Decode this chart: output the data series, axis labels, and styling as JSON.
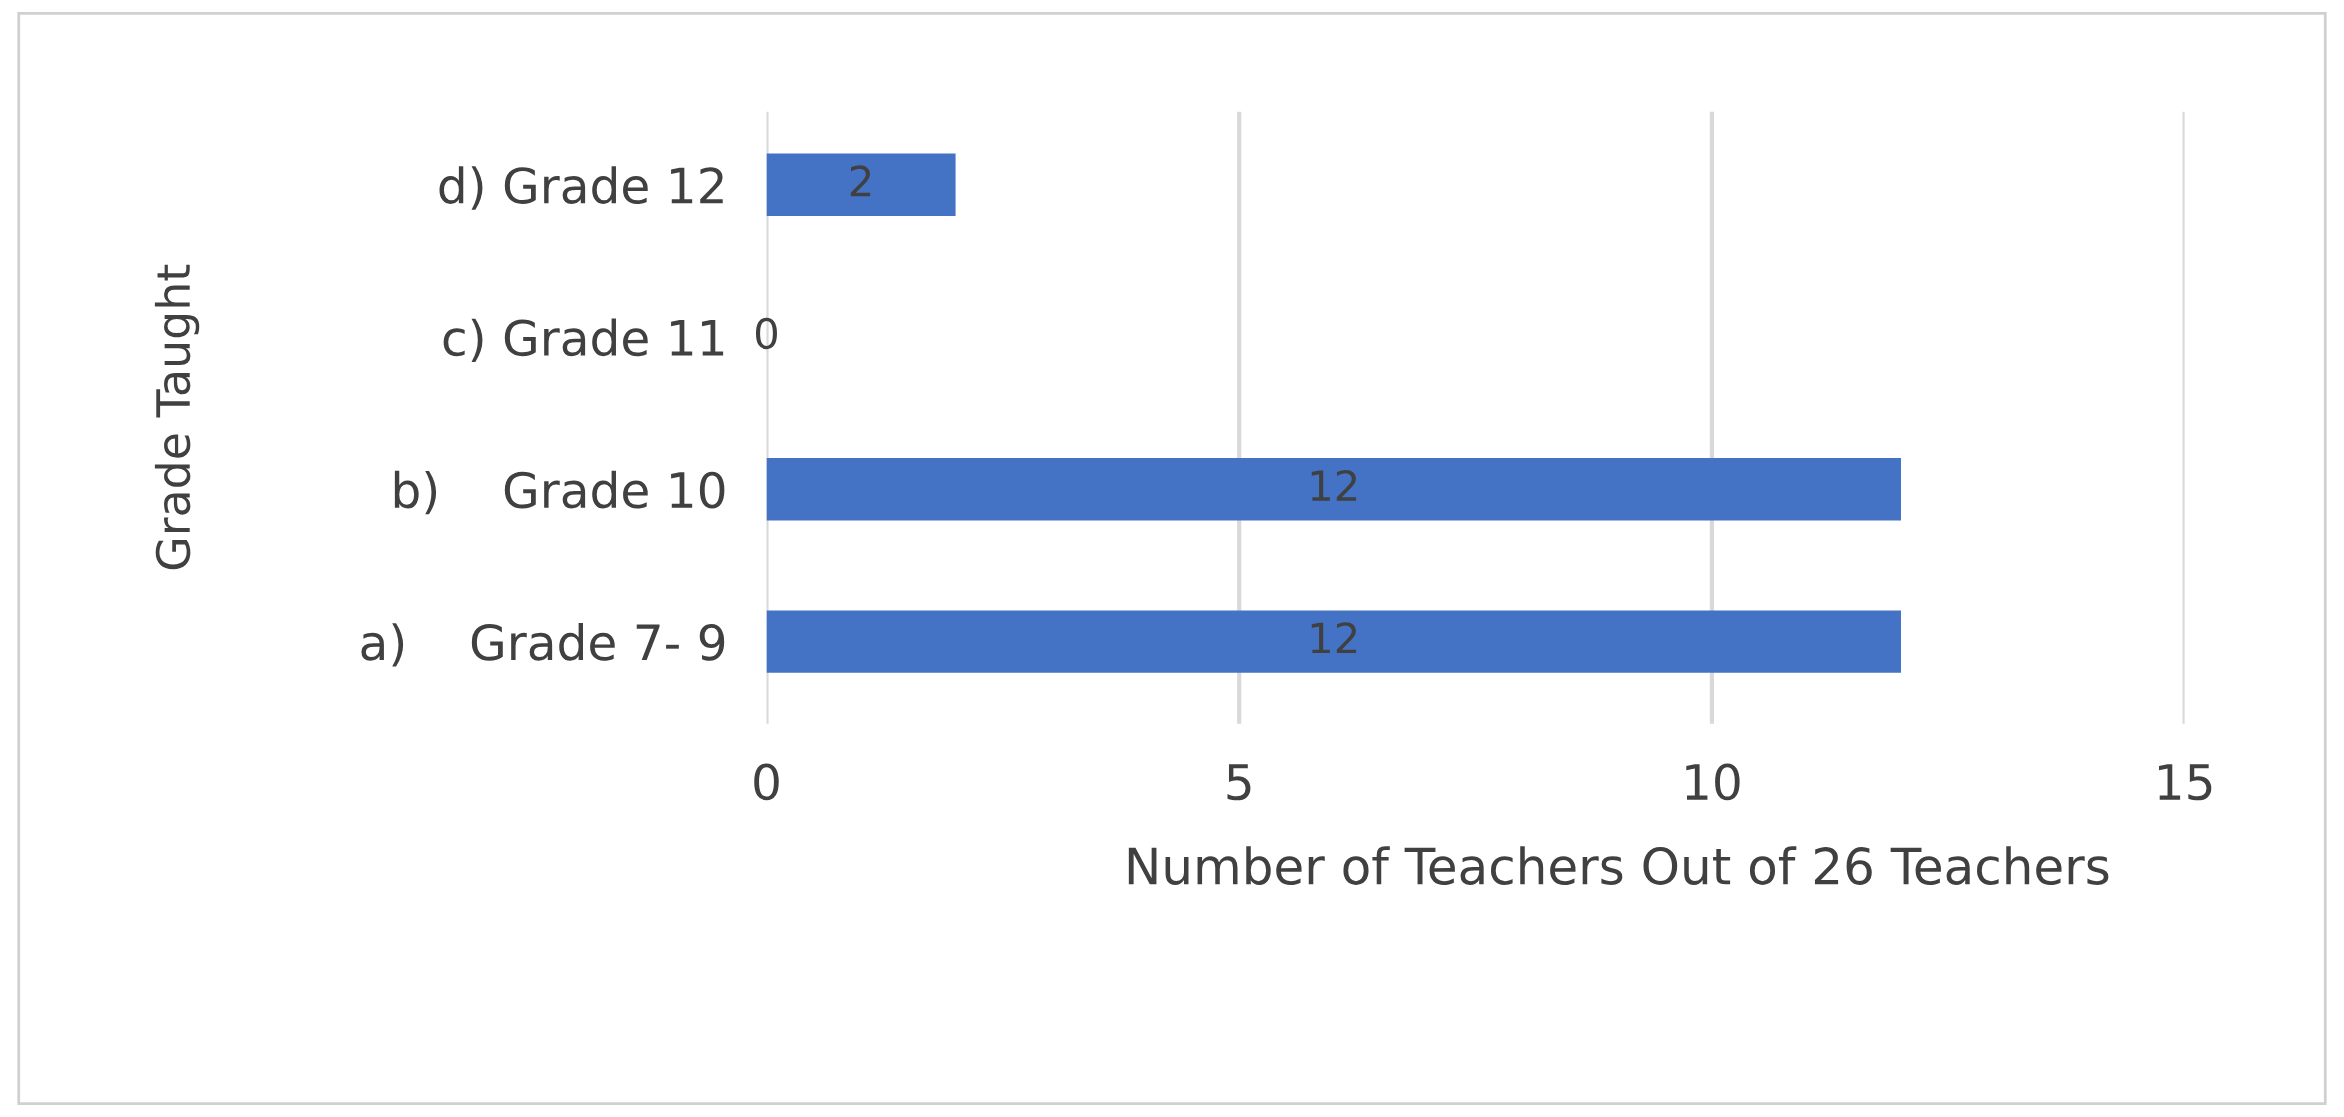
{
  "chart_data": {
    "type": "bar",
    "orientation": "horizontal",
    "categories": [
      "d) Grade 12",
      "c) Grade 11",
      "b)    Grade 10",
      "a)    Grade 7- 9"
    ],
    "values": [
      2,
      0,
      12,
      12
    ],
    "color": "#4472c4",
    "xlabel": "Number of Teachers Out of 26 Teachers",
    "ylabel": "Grade Taught",
    "xlim": [
      0,
      15
    ],
    "xticks": [
      0,
      5,
      10,
      15
    ],
    "grid": "x",
    "data_labels": true
  }
}
